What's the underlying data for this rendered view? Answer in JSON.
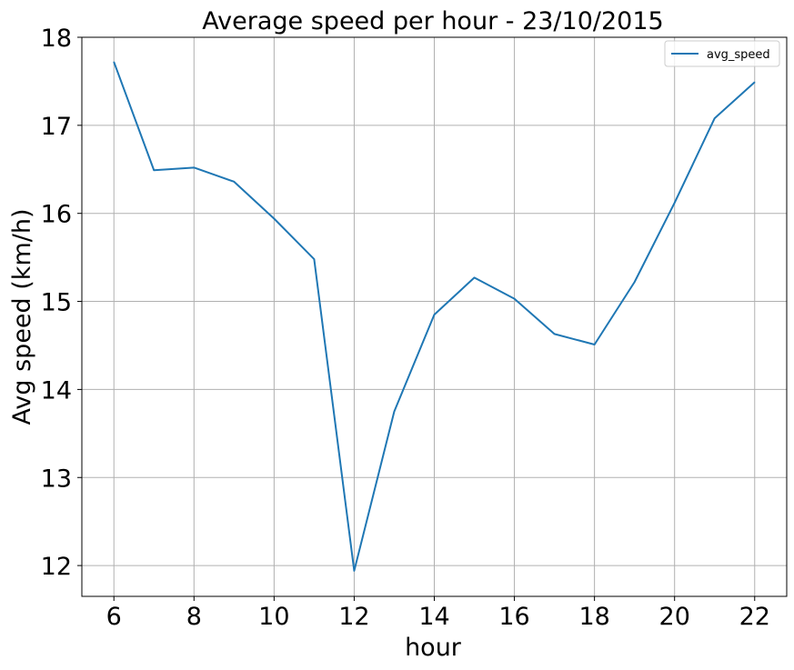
{
  "chart_data": {
    "type": "line",
    "title": "Average speed per hour - 23/10/2015",
    "xlabel": "hour",
    "ylabel": "Avg speed (km/h)",
    "x": [
      6,
      7,
      8,
      9,
      10,
      11,
      12,
      13,
      14,
      15,
      16,
      17,
      18,
      19,
      20,
      21,
      22
    ],
    "series": [
      {
        "name": "avg_speed",
        "color": "#1f77b4",
        "values": [
          17.72,
          16.49,
          16.52,
          16.36,
          15.94,
          15.48,
          11.94,
          13.75,
          14.85,
          15.27,
          15.03,
          14.63,
          14.51,
          15.22,
          16.12,
          17.08,
          17.49
        ]
      }
    ],
    "xlim": [
      5.2,
      22.8
    ],
    "ylim": [
      11.65,
      18.0
    ],
    "xticks": [
      6,
      8,
      10,
      12,
      14,
      16,
      18,
      20,
      22
    ],
    "yticks": [
      12,
      13,
      14,
      15,
      16,
      17,
      18
    ],
    "grid": true,
    "legend_position": "top-right"
  }
}
